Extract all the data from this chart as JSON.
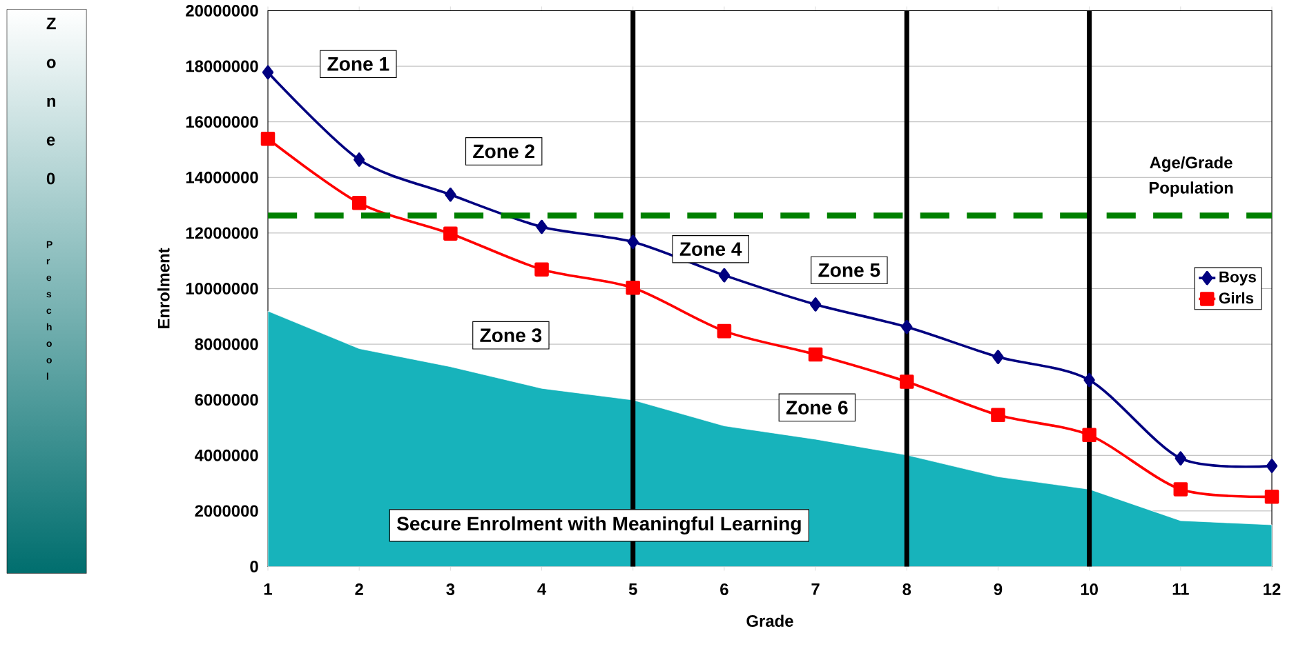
{
  "chart_data": {
    "type": "line",
    "xlabel": "Grade",
    "ylabel": "Enrolment",
    "x": [
      1,
      2,
      3,
      4,
      5,
      6,
      7,
      8,
      9,
      10,
      11,
      12
    ],
    "series": [
      {
        "name": "Boys",
        "color": "#000080",
        "marker": "diamond",
        "values": [
          17780000,
          14640000,
          13380000,
          12220000,
          11680000,
          10480000,
          9430000,
          8620000,
          7540000,
          6710000,
          3890000,
          3620000
        ]
      },
      {
        "name": "Girls",
        "color": "#ff0000",
        "marker": "square",
        "values": [
          15390000,
          13080000,
          11980000,
          10690000,
          10030000,
          8470000,
          7630000,
          6650000,
          5450000,
          4730000,
          2780000,
          2510000
        ]
      },
      {
        "type": "area",
        "color": "#17b3bb",
        "values": [
          9190000,
          7840000,
          7190000,
          6410000,
          5990000,
          5060000,
          4580000,
          4010000,
          3230000,
          2780000,
          1650000,
          1500000
        ]
      }
    ],
    "xlim": [
      1,
      12
    ],
    "xticks": [
      1,
      2,
      3,
      4,
      5,
      6,
      7,
      8,
      9,
      10,
      11,
      12
    ],
    "ylim": [
      0,
      20000000
    ],
    "yticks": [
      0,
      2000000,
      4000000,
      6000000,
      8000000,
      10000000,
      12000000,
      14000000,
      16000000,
      18000000,
      20000000
    ],
    "grid": "y",
    "legend": "right",
    "ref_lines": [
      {
        "axis": "y",
        "value": 12630000,
        "label": "Age/Grade Population",
        "color": "#008000",
        "line_style": "dashed"
      },
      {
        "axis": "x",
        "value": 5,
        "color": "#000000",
        "line_style": "solid"
      },
      {
        "axis": "x",
        "value": 8,
        "color": "#000000",
        "line_style": "solid"
      },
      {
        "axis": "x",
        "value": 10,
        "color": "#000000",
        "line_style": "solid"
      }
    ],
    "annotations": [
      "Zone 0",
      "Preschool",
      "Zone 1",
      "Zone 2",
      "Zone 3",
      "Zone 4",
      "Zone 5",
      "Zone 6",
      "Secure Enrolment with Meaningful Learning"
    ]
  }
}
